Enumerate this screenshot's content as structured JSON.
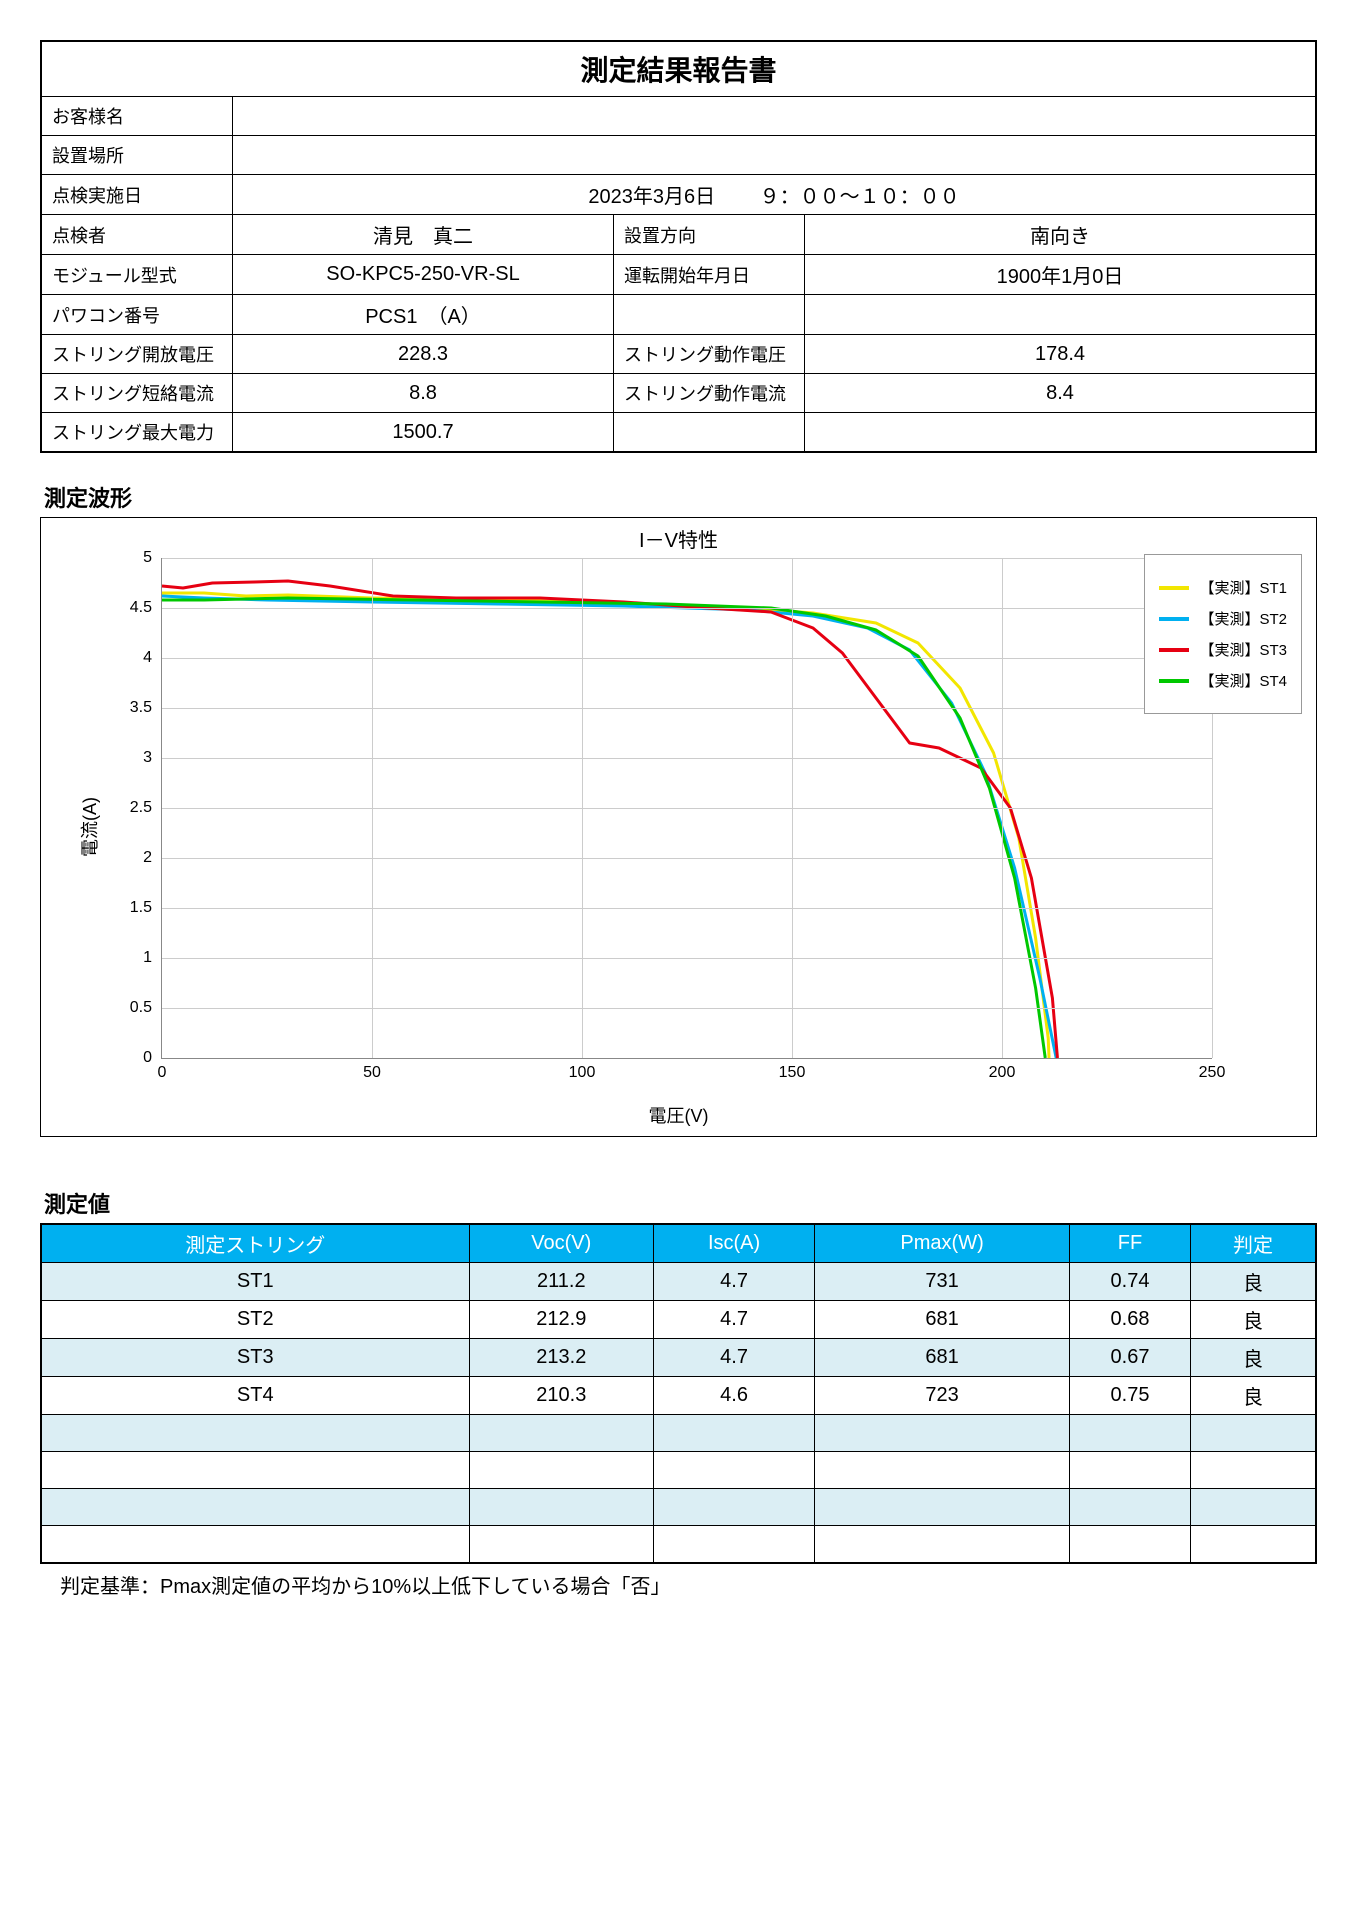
{
  "report": {
    "title": "測定結果報告書",
    "labels": {
      "customer": "お客様名",
      "location": "設置場所",
      "inspection_date": "点検実施日",
      "inspector": "点検者",
      "module_model": "モジュール型式",
      "pcs_number": "パワコン番号",
      "string_voc": "ストリング開放電圧",
      "string_isc": "ストリング短絡電流",
      "string_pmax": "ストリング最大電力",
      "install_direction": "設置方向",
      "operation_start": "運転開始年月日",
      "string_vop": "ストリング動作電圧",
      "string_iop": "ストリング動作電流"
    },
    "values": {
      "customer": "",
      "location": "",
      "inspection_date": "2023年3月6日",
      "inspection_time": "９：００～１０：００",
      "inspector": "清見　真二",
      "module_model": "SO-KPC5-250-VR-SL",
      "pcs_number": "PCS1　（A）",
      "string_voc": "228.3",
      "string_isc": "8.8",
      "string_pmax": "1500.7",
      "install_direction": "南向き",
      "operation_start": "1900年1月0日",
      "string_vop": "178.4",
      "string_iop": "8.4"
    }
  },
  "waveform_label": "測定波形",
  "chart": {
    "title": "I－V特性",
    "xlabel": "電圧(V)",
    "ylabel": "電流(A)",
    "xlim": [
      0,
      250
    ],
    "ylim": [
      0,
      5
    ],
    "xtick_step": 50,
    "ytick_step": 0.5,
    "grid_color": "#cccccc",
    "background_color": "#ffffff",
    "line_width": 3,
    "series": [
      {
        "name": "【実測】ST1",
        "color": "#f2e600",
        "points": [
          [
            0,
            4.65
          ],
          [
            10,
            4.65
          ],
          [
            20,
            4.62
          ],
          [
            30,
            4.63
          ],
          [
            50,
            4.6
          ],
          [
            80,
            4.58
          ],
          [
            110,
            4.55
          ],
          [
            140,
            4.5
          ],
          [
            155,
            4.45
          ],
          [
            170,
            4.35
          ],
          [
            180,
            4.15
          ],
          [
            190,
            3.7
          ],
          [
            198,
            3.05
          ],
          [
            204,
            2.2
          ],
          [
            208,
            1.2
          ],
          [
            211,
            0.2
          ],
          [
            211.2,
            0
          ]
        ]
      },
      {
        "name": "【実測】ST2",
        "color": "#00b0f0",
        "points": [
          [
            0,
            4.62
          ],
          [
            10,
            4.6
          ],
          [
            25,
            4.58
          ],
          [
            50,
            4.56
          ],
          [
            80,
            4.54
          ],
          [
            110,
            4.52
          ],
          [
            140,
            4.48
          ],
          [
            155,
            4.42
          ],
          [
            168,
            4.3
          ],
          [
            178,
            4.08
          ],
          [
            188,
            3.55
          ],
          [
            196,
            2.85
          ],
          [
            203,
            1.9
          ],
          [
            209,
            0.8
          ],
          [
            212.9,
            0
          ]
        ]
      },
      {
        "name": "【実測】ST3",
        "color": "#e60012",
        "points": [
          [
            0,
            4.72
          ],
          [
            5,
            4.7
          ],
          [
            12,
            4.75
          ],
          [
            22,
            4.76
          ],
          [
            30,
            4.77
          ],
          [
            40,
            4.72
          ],
          [
            55,
            4.62
          ],
          [
            70,
            4.6
          ],
          [
            90,
            4.6
          ],
          [
            110,
            4.56
          ],
          [
            130,
            4.5
          ],
          [
            145,
            4.46
          ],
          [
            155,
            4.3
          ],
          [
            162,
            4.05
          ],
          [
            170,
            3.6
          ],
          [
            178,
            3.15
          ],
          [
            185,
            3.1
          ],
          [
            195,
            2.9
          ],
          [
            202,
            2.5
          ],
          [
            207,
            1.8
          ],
          [
            212,
            0.6
          ],
          [
            213.2,
            0
          ]
        ]
      },
      {
        "name": "【実測】ST4",
        "color": "#00c800",
        "points": [
          [
            0,
            4.58
          ],
          [
            10,
            4.58
          ],
          [
            30,
            4.6
          ],
          [
            60,
            4.58
          ],
          [
            90,
            4.56
          ],
          [
            120,
            4.54
          ],
          [
            145,
            4.5
          ],
          [
            158,
            4.42
          ],
          [
            170,
            4.28
          ],
          [
            180,
            4.02
          ],
          [
            190,
            3.4
          ],
          [
            197,
            2.7
          ],
          [
            203,
            1.8
          ],
          [
            208,
            0.7
          ],
          [
            210.3,
            0
          ]
        ]
      }
    ]
  },
  "measurement_label": "測定値",
  "meas_table": {
    "header_bg": "#00b0f0",
    "header_fg": "#ffffff",
    "alt_bg": "#dbeef4",
    "columns": [
      "測定ストリング",
      "Voc(V)",
      "Isc(A)",
      "Pmax(W)",
      "FF",
      "判定"
    ],
    "rows": [
      [
        "ST1",
        "211.2",
        "4.7",
        "731",
        "0.74",
        "良"
      ],
      [
        "ST2",
        "212.9",
        "4.7",
        "681",
        "0.68",
        "良"
      ],
      [
        "ST3",
        "213.2",
        "4.7",
        "681",
        "0.67",
        "良"
      ],
      [
        "ST4",
        "210.3",
        "4.6",
        "723",
        "0.75",
        "良"
      ],
      [
        "",
        "",
        "",
        "",
        "",
        ""
      ],
      [
        "",
        "",
        "",
        "",
        "",
        ""
      ],
      [
        "",
        "",
        "",
        "",
        "",
        ""
      ],
      [
        "",
        "",
        "",
        "",
        "",
        ""
      ]
    ]
  },
  "footnote": "判定基準：Pmax測定値の平均から10%以上低下している場合「否」"
}
